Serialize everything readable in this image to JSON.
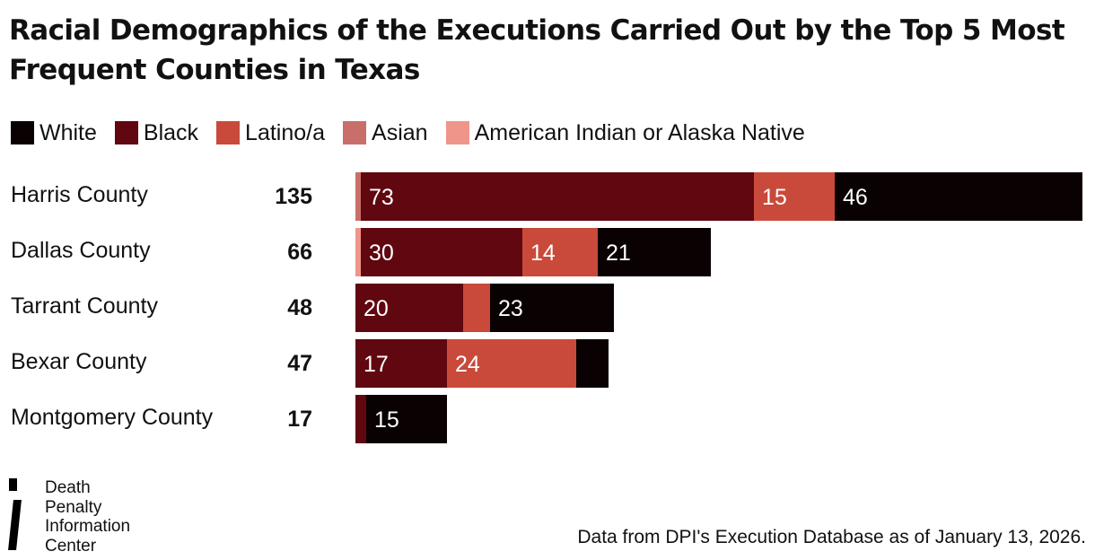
{
  "chart_data": {
    "type": "bar",
    "orientation": "horizontal",
    "stacked": true,
    "title": "Racial Demographics of the Executions Carried Out by the Top 5 Most Frequent Counties in Texas",
    "categories": [
      "Harris County",
      "Dallas County",
      "Tarrant County",
      "Bexar County",
      "Montgomery County"
    ],
    "totals": [
      135,
      66,
      48,
      47,
      17
    ],
    "series": [
      {
        "name": "Asian",
        "color": "#c86f6a",
        "values": [
          1,
          0,
          0,
          0,
          0
        ]
      },
      {
        "name": "American Indian or Alaska Native",
        "color": "#f0958a",
        "values": [
          0,
          1,
          0,
          0,
          0
        ]
      },
      {
        "name": "Black",
        "color": "#600710",
        "values": [
          73,
          30,
          20,
          17,
          2
        ]
      },
      {
        "name": "Latino/a",
        "color": "#c94a3a",
        "values": [
          15,
          14,
          5,
          24,
          0
        ]
      },
      {
        "name": "White",
        "color": "#0a0102",
        "values": [
          46,
          21,
          23,
          6,
          15
        ]
      }
    ],
    "data_labels_min": 10,
    "legend_order": [
      "White",
      "Black",
      "Latino/a",
      "Asian",
      "American Indian or Alaska Native"
    ],
    "legend_position": "top-left",
    "grid": false
  },
  "source_note": "Data from DPI's Execution Database as of January 13, 2026.",
  "logo": {
    "lines": [
      "Death",
      "Penalty",
      "Information",
      "Center"
    ]
  }
}
